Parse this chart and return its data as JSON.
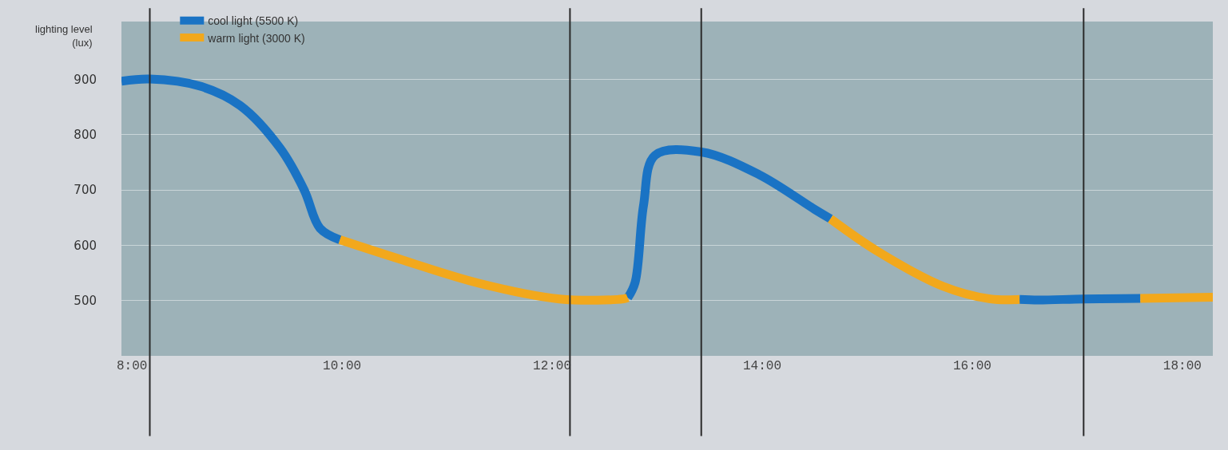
{
  "chart_data": {
    "type": "line",
    "ylabel": "lighting level\n(lux)",
    "xlim": [
      7.9,
      18.29
    ],
    "xticks": [
      {
        "value": 8,
        "label": "8:00"
      },
      {
        "value": 10,
        "label": "10:00"
      },
      {
        "value": 12,
        "label": "12:00"
      },
      {
        "value": 14,
        "label": "14:00"
      },
      {
        "value": 16,
        "label": "16:00"
      },
      {
        "value": 18,
        "label": "18:00"
      }
    ],
    "ylim": [
      400,
      1005
    ],
    "yticks": [
      500,
      600,
      700,
      800,
      900
    ],
    "series": [
      {
        "name": "cool light (5500 K)",
        "color": "#1a73c4",
        "x": [
          7.9,
          8.17,
          8.65,
          9.03,
          9.41,
          9.64,
          9.79,
          9.98,
          null,
          12.72,
          12.79,
          12.87,
          12.98,
          13.42,
          13.97,
          14.5,
          14.65,
          null,
          16.45,
          16.63,
          17.06,
          17.6
        ],
        "values": [
          897,
          901,
          888,
          853,
          776,
          700,
          631,
          610,
          null,
          505,
          533,
          672,
          763,
          769,
          728,
          665,
          648,
          null,
          502,
          501,
          503,
          504
        ]
      },
      {
        "name": "warm light (3000 K)",
        "color": "#f2a81c",
        "x": [
          9.98,
          10.55,
          11.31,
          12.07,
          12.68,
          12.72,
          null,
          14.65,
          15.1,
          15.72,
          16.17,
          16.45,
          null,
          17.6,
          18.29
        ],
        "values": [
          610,
          575,
          531,
          503,
          503,
          505,
          null,
          648,
          589,
          526,
          503,
          502,
          null,
          504,
          506
        ]
      }
    ],
    "ref_lines": [
      {
        "axis": "x",
        "value": 8.17,
        "color": "#2b2b2b"
      },
      {
        "axis": "x",
        "value": 12.17,
        "color": "#2b2b2b"
      },
      {
        "axis": "x",
        "value": 13.42,
        "color": "#2b2b2b"
      },
      {
        "axis": "x",
        "value": 17.06,
        "color": "#2b2b2b"
      }
    ],
    "grid": "y",
    "legend": "top left"
  }
}
